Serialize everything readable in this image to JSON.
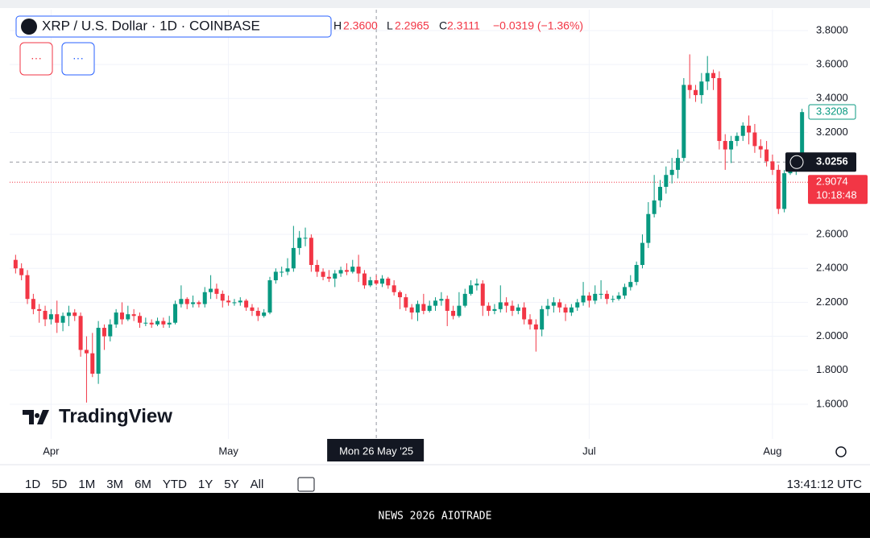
{
  "chart_data": {
    "type": "candlestick",
    "symbol": "XRP / U.S. Dollar · 1D · COINBASE",
    "ohlc_legend": {
      "h_label": "H",
      "h": "2.3600",
      "l_label": "L",
      "l": "2.2965",
      "c_label": "C",
      "c": "2.3111",
      "change": "−0.0319 (−1.36%)"
    },
    "indicator_buttons": [
      "···",
      "···"
    ],
    "up_color": "#089981",
    "down_color": "#f23645",
    "x": [
      "2025-03-26",
      "2025-03-27",
      "2025-03-28",
      "2025-03-29",
      "2025-03-30",
      "2025-03-31",
      "2025-04-01",
      "2025-04-02",
      "2025-04-03",
      "2025-04-04",
      "2025-04-05",
      "2025-04-06",
      "2025-04-07",
      "2025-04-08",
      "2025-04-09",
      "2025-04-10",
      "2025-04-11",
      "2025-04-12",
      "2025-04-13",
      "2025-04-14",
      "2025-04-15",
      "2025-04-16",
      "2025-04-17",
      "2025-04-18",
      "2025-04-19",
      "2025-04-20",
      "2025-04-21",
      "2025-04-22",
      "2025-04-23",
      "2025-04-24",
      "2025-04-25",
      "2025-04-26",
      "2025-04-27",
      "2025-04-28",
      "2025-04-29",
      "2025-04-30",
      "2025-05-01",
      "2025-05-02",
      "2025-05-03",
      "2025-05-04",
      "2025-05-05",
      "2025-05-06",
      "2025-05-07",
      "2025-05-08",
      "2025-05-09",
      "2025-05-10",
      "2025-05-11",
      "2025-05-12",
      "2025-05-13",
      "2025-05-14",
      "2025-05-15",
      "2025-05-16",
      "2025-05-17",
      "2025-05-18",
      "2025-05-19",
      "2025-05-20",
      "2025-05-21",
      "2025-05-22",
      "2025-05-23",
      "2025-05-24",
      "2025-05-25",
      "2025-05-26",
      "2025-05-27",
      "2025-05-28",
      "2025-05-29",
      "2025-05-30",
      "2025-05-31",
      "2025-06-01",
      "2025-06-02",
      "2025-06-03",
      "2025-06-04",
      "2025-06-05",
      "2025-06-06",
      "2025-06-07",
      "2025-06-08",
      "2025-06-09",
      "2025-06-10",
      "2025-06-11",
      "2025-06-12",
      "2025-06-13",
      "2025-06-14",
      "2025-06-15",
      "2025-06-16",
      "2025-06-17",
      "2025-06-18",
      "2025-06-19",
      "2025-06-20",
      "2025-06-21",
      "2025-06-22",
      "2025-06-23",
      "2025-06-24",
      "2025-06-25",
      "2025-06-26",
      "2025-06-27",
      "2025-06-28",
      "2025-06-29",
      "2025-06-30",
      "2025-07-01",
      "2025-07-02",
      "2025-07-03",
      "2025-07-04",
      "2025-07-05",
      "2025-07-06",
      "2025-07-07",
      "2025-07-08",
      "2025-07-09",
      "2025-07-10",
      "2025-07-11",
      "2025-07-12",
      "2025-07-13",
      "2025-07-14",
      "2025-07-15",
      "2025-07-16",
      "2025-07-17",
      "2025-07-18",
      "2025-07-19",
      "2025-07-20",
      "2025-07-21",
      "2025-07-22",
      "2025-07-23",
      "2025-07-24",
      "2025-07-25",
      "2025-07-26",
      "2025-07-27",
      "2025-07-28",
      "2025-07-29",
      "2025-07-30",
      "2025-07-31",
      "2025-08-01",
      "2025-08-02",
      "2025-08-03",
      "2025-08-04",
      "2025-08-05",
      "2025-08-06"
    ],
    "open": [
      2.45,
      2.4,
      2.36,
      2.22,
      2.16,
      2.15,
      2.1,
      2.13,
      2.08,
      2.12,
      2.14,
      2.12,
      1.92,
      1.9,
      1.78,
      2.05,
      2.0,
      2.07,
      2.14,
      2.1,
      2.13,
      2.12,
      2.08,
      2.08,
      2.07,
      2.09,
      2.07,
      2.08,
      2.19,
      2.22,
      2.19,
      2.2,
      2.19,
      2.26,
      2.28,
      2.25,
      2.21,
      2.2,
      2.2,
      2.21,
      2.17,
      2.15,
      2.12,
      2.14,
      2.33,
      2.38,
      2.38,
      2.4,
      2.52,
      2.58,
      2.58,
      2.42,
      2.38,
      2.35,
      2.34,
      2.37,
      2.39,
      2.38,
      2.41,
      2.37,
      2.3,
      2.33,
      2.31,
      2.34,
      2.3,
      2.26,
      2.23,
      2.17,
      2.14,
      2.19,
      2.15,
      2.18,
      2.21,
      2.22,
      2.15,
      2.12,
      2.18,
      2.25,
      2.3,
      2.31,
      2.18,
      2.15,
      2.16,
      2.2,
      2.18,
      2.15,
      2.17,
      2.1,
      2.07,
      2.04,
      2.16,
      2.18,
      2.2,
      2.17,
      2.14,
      2.17,
      2.2,
      2.24,
      2.21,
      2.25,
      2.25,
      2.22,
      2.22,
      2.24,
      2.29,
      2.32,
      2.42,
      2.55,
      2.72,
      2.8,
      2.88,
      2.95,
      2.98,
      3.05,
      3.48,
      3.45,
      3.42,
      3.5,
      3.55,
      3.52,
      3.15,
      3.1,
      3.15,
      3.18,
      3.24,
      3.2,
      3.12,
      3.1,
      3.03,
      2.98,
      2.75,
      2.96,
      3.0,
      3.03
    ],
    "high": [
      2.48,
      2.43,
      2.39,
      2.25,
      2.19,
      2.18,
      2.16,
      2.21,
      2.14,
      2.18,
      2.16,
      2.14,
      2.0,
      2.02,
      2.09,
      2.07,
      2.1,
      2.16,
      2.2,
      2.18,
      2.16,
      2.14,
      2.11,
      2.1,
      2.11,
      2.11,
      2.12,
      2.21,
      2.3,
      2.23,
      2.24,
      2.21,
      2.29,
      2.36,
      2.31,
      2.27,
      2.24,
      2.22,
      2.23,
      2.22,
      2.19,
      2.17,
      2.16,
      2.35,
      2.4,
      2.41,
      2.46,
      2.65,
      2.62,
      2.64,
      2.6,
      2.45,
      2.4,
      2.39,
      2.39,
      2.41,
      2.43,
      2.45,
      2.48,
      2.39,
      2.35,
      2.36,
      2.36,
      2.35,
      2.33,
      2.27,
      2.25,
      2.19,
      2.21,
      2.25,
      2.21,
      2.23,
      2.26,
      2.24,
      2.18,
      2.26,
      2.28,
      2.33,
      2.34,
      2.33,
      2.2,
      2.19,
      2.3,
      2.23,
      2.21,
      2.19,
      2.2,
      2.13,
      2.1,
      2.18,
      2.22,
      2.23,
      2.22,
      2.19,
      2.19,
      2.22,
      2.32,
      2.26,
      2.3,
      2.33,
      2.27,
      2.24,
      2.26,
      2.31,
      2.36,
      2.44,
      2.6,
      2.79,
      2.95,
      2.92,
      3.0,
      3.05,
      3.1,
      3.52,
      3.66,
      3.48,
      3.55,
      3.65,
      3.57,
      3.56,
      3.19,
      3.18,
      3.2,
      3.26,
      3.3,
      3.25,
      3.16,
      3.15,
      3.07,
      3.01,
      2.98,
      3.04,
      3.06,
      3.34
    ],
    "low": [
      2.37,
      2.33,
      2.19,
      2.13,
      2.08,
      2.06,
      2.07,
      2.02,
      2.03,
      2.06,
      2.09,
      1.88,
      1.61,
      1.76,
      1.72,
      1.92,
      1.97,
      2.05,
      2.07,
      2.09,
      2.09,
      2.05,
      2.06,
      2.05,
      2.06,
      2.05,
      2.05,
      2.07,
      2.17,
      2.16,
      2.17,
      2.17,
      2.17,
      2.22,
      2.22,
      2.17,
      2.18,
      2.18,
      2.18,
      2.15,
      2.12,
      2.09,
      2.11,
      2.13,
      2.31,
      2.35,
      2.36,
      2.38,
      2.48,
      2.53,
      2.38,
      2.35,
      2.33,
      2.32,
      2.29,
      2.35,
      2.36,
      2.37,
      2.32,
      2.28,
      2.29,
      2.3,
      2.29,
      2.28,
      2.24,
      2.16,
      2.15,
      2.1,
      2.09,
      2.13,
      2.14,
      2.15,
      2.18,
      2.06,
      2.1,
      2.11,
      2.17,
      2.24,
      2.27,
      2.12,
      2.12,
      2.13,
      2.14,
      2.14,
      2.12,
      2.13,
      2.07,
      2.04,
      1.91,
      2.0,
      2.12,
      2.14,
      2.14,
      2.09,
      2.12,
      2.15,
      2.18,
      2.17,
      2.19,
      2.22,
      2.19,
      2.2,
      2.21,
      2.22,
      2.27,
      2.3,
      2.4,
      2.52,
      2.7,
      2.76,
      2.84,
      2.9,
      2.93,
      3.03,
      3.4,
      3.38,
      3.37,
      3.45,
      3.45,
      3.1,
      2.98,
      3.02,
      3.12,
      3.15,
      3.13,
      3.08,
      3.05,
      3.0,
      2.95,
      2.72,
      2.73,
      2.95,
      2.95,
      3.0
    ],
    "close": [
      2.4,
      2.36,
      2.22,
      2.16,
      2.15,
      2.1,
      2.13,
      2.08,
      2.12,
      2.14,
      2.12,
      1.92,
      1.9,
      1.78,
      2.05,
      2.0,
      2.07,
      2.14,
      2.1,
      2.13,
      2.12,
      2.08,
      2.08,
      2.07,
      2.09,
      2.07,
      2.08,
      2.19,
      2.22,
      2.19,
      2.2,
      2.19,
      2.26,
      2.28,
      2.25,
      2.21,
      2.2,
      2.2,
      2.21,
      2.17,
      2.15,
      2.12,
      2.14,
      2.33,
      2.38,
      2.38,
      2.4,
      2.52,
      2.58,
      2.58,
      2.42,
      2.38,
      2.35,
      2.34,
      2.37,
      2.39,
      2.38,
      2.41,
      2.37,
      2.3,
      2.33,
      2.31,
      2.34,
      2.3,
      2.26,
      2.23,
      2.17,
      2.14,
      2.19,
      2.15,
      2.18,
      2.21,
      2.22,
      2.15,
      2.12,
      2.18,
      2.25,
      2.3,
      2.31,
      2.18,
      2.15,
      2.16,
      2.2,
      2.18,
      2.15,
      2.17,
      2.1,
      2.07,
      2.04,
      2.16,
      2.18,
      2.2,
      2.17,
      2.14,
      2.17,
      2.2,
      2.24,
      2.21,
      2.25,
      2.25,
      2.22,
      2.22,
      2.24,
      2.29,
      2.32,
      2.42,
      2.55,
      2.72,
      2.8,
      2.88,
      2.95,
      2.98,
      3.05,
      3.48,
      3.45,
      3.42,
      3.5,
      3.55,
      3.52,
      3.15,
      3.1,
      3.15,
      3.18,
      3.24,
      3.2,
      3.12,
      3.1,
      3.03,
      2.98,
      2.75,
      2.96,
      3.0,
      3.03,
      3.32
    ],
    "xlim": [
      "2025-03-25",
      "2025-08-07"
    ],
    "xticks": [
      {
        "value": "2025-04-01",
        "label": "Apr"
      },
      {
        "value": "2025-05-01",
        "label": "May"
      },
      {
        "value": "2025-07-01",
        "label": "Jul"
      },
      {
        "value": "2025-08-01",
        "label": "Aug"
      }
    ],
    "ylim": [
      1.396,
      3.923
    ],
    "yticks": [
      {
        "value": 3.8,
        "label": "3.8000"
      },
      {
        "value": 3.6,
        "label": "3.6000"
      },
      {
        "value": 3.4,
        "label": "3.4000"
      },
      {
        "value": 3.2,
        "label": "3.2000"
      },
      {
        "value": 2.6,
        "label": "2.6000"
      },
      {
        "value": 2.4,
        "label": "2.4000"
      },
      {
        "value": 2.2,
        "label": "2.2000"
      },
      {
        "value": 2.0,
        "label": "2.0000"
      },
      {
        "value": 1.8,
        "label": "1.8000"
      },
      {
        "value": 1.6,
        "label": "1.6000"
      }
    ],
    "grid": true,
    "last_price": {
      "value": 3.3208,
      "label": "3.3208"
    },
    "crosshair": {
      "value": 3.0256,
      "label": "3.0256",
      "x": "2025-05-26",
      "date_label": "Mon 26 May '25"
    },
    "price_line": {
      "value": 2.9074,
      "label": "2.9074",
      "countdown": "10:18:48"
    },
    "logo": "TradingView",
    "ranges": [
      "1D",
      "5D",
      "1M",
      "3M",
      "6M",
      "YTD",
      "1Y",
      "5Y",
      "All"
    ],
    "clock": "13:41:12 UTC",
    "footer": "NEWS 2026 AIOTRADE"
  }
}
